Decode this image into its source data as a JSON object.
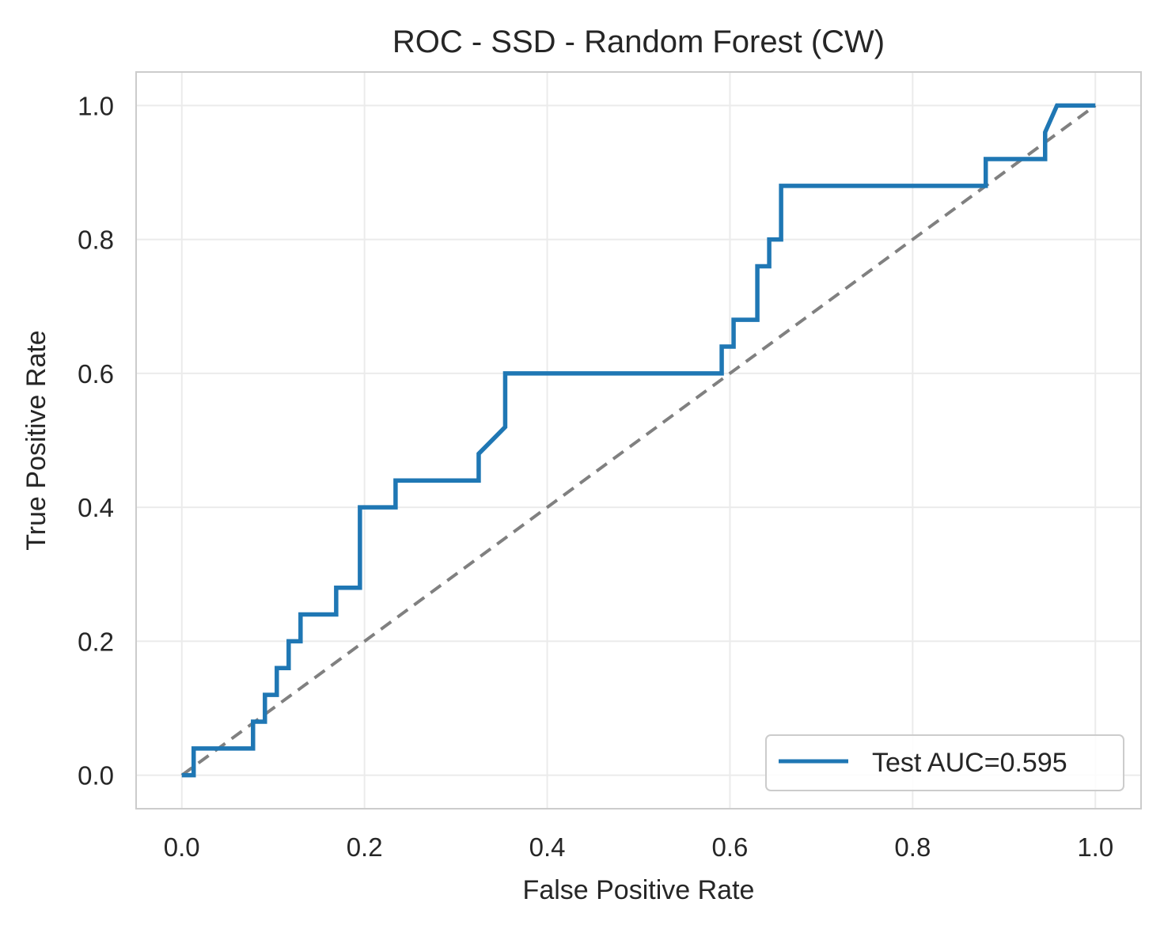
{
  "chart_data": {
    "type": "line",
    "title": "ROC - SSD - Random Forest (CW)",
    "xlabel": "False Positive Rate",
    "ylabel": "True Positive Rate",
    "xlim": [
      -0.05,
      1.05
    ],
    "ylim": [
      -0.05,
      1.05
    ],
    "xticks": [
      0.0,
      0.2,
      0.4,
      0.6,
      0.8,
      1.0
    ],
    "yticks": [
      0.0,
      0.2,
      0.4,
      0.6,
      0.8,
      1.0
    ],
    "xtick_labels": [
      "0.0",
      "0.2",
      "0.4",
      "0.6",
      "0.8",
      "1.0"
    ],
    "ytick_labels": [
      "0.0",
      "0.2",
      "0.4",
      "0.6",
      "0.8",
      "1.0"
    ],
    "grid": true,
    "legend_position": "lower-right",
    "series": [
      {
        "name": "Test AUC=0.595",
        "color": "#1f77b4",
        "style": "solid",
        "x": [
          0.0,
          0.013,
          0.013,
          0.078,
          0.078,
          0.091,
          0.091,
          0.104,
          0.104,
          0.117,
          0.117,
          0.13,
          0.13,
          0.169,
          0.169,
          0.195,
          0.195,
          0.234,
          0.234,
          0.325,
          0.325,
          0.354,
          0.354,
          0.591,
          0.591,
          0.604,
          0.604,
          0.63,
          0.63,
          0.643,
          0.643,
          0.656,
          0.656,
          0.88,
          0.88,
          0.945,
          0.945,
          0.958,
          1.0
        ],
        "y": [
          0.0,
          0.0,
          0.04,
          0.04,
          0.08,
          0.08,
          0.12,
          0.12,
          0.16,
          0.16,
          0.2,
          0.2,
          0.24,
          0.24,
          0.28,
          0.28,
          0.4,
          0.4,
          0.44,
          0.44,
          0.48,
          0.52,
          0.6,
          0.6,
          0.64,
          0.64,
          0.68,
          0.68,
          0.76,
          0.76,
          0.8,
          0.8,
          0.88,
          0.88,
          0.92,
          0.92,
          0.96,
          1.0,
          1.0
        ]
      },
      {
        "color": "#808080",
        "style": "dashed",
        "x": [
          0.0,
          1.0
        ],
        "y": [
          0.0,
          1.0
        ]
      }
    ]
  }
}
